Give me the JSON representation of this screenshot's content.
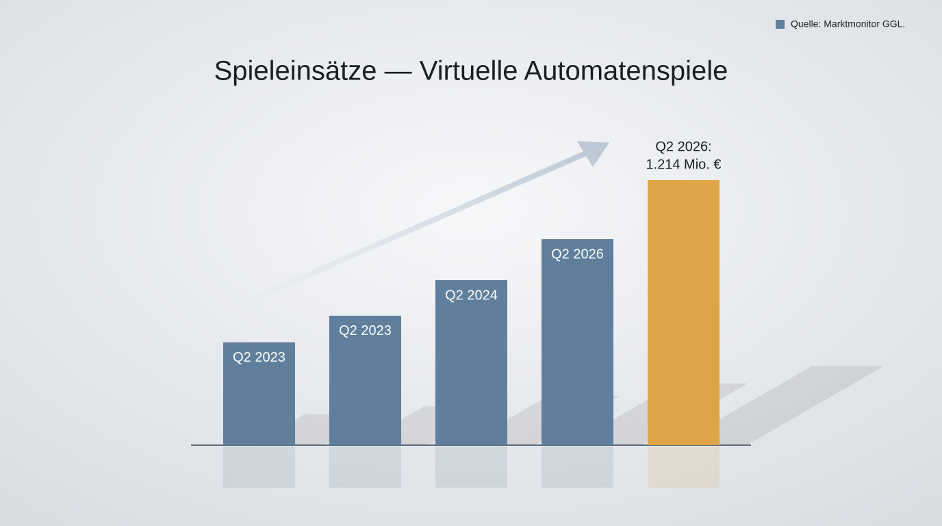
{
  "chart_data": {
    "type": "bar",
    "title": "Spieleinsätze — Virtuelle Automatenspiele",
    "source": "Quelle: Marktmonitor GGL.",
    "source_color": "#5f7f9c",
    "categories": [
      "Q2 2023",
      "Q2 2023",
      "Q2 2024",
      "Q2 2026",
      "Q2 2026:"
    ],
    "values": [
      471,
      593,
      756,
      944,
      1214
    ],
    "value_labels": [
      null,
      null,
      null,
      null,
      "1.214 Mio. €"
    ],
    "colors": [
      "#5f7f9c",
      "#5f7f9c",
      "#5f7f9c",
      "#5f7f9c",
      "#e0a448"
    ]
  }
}
